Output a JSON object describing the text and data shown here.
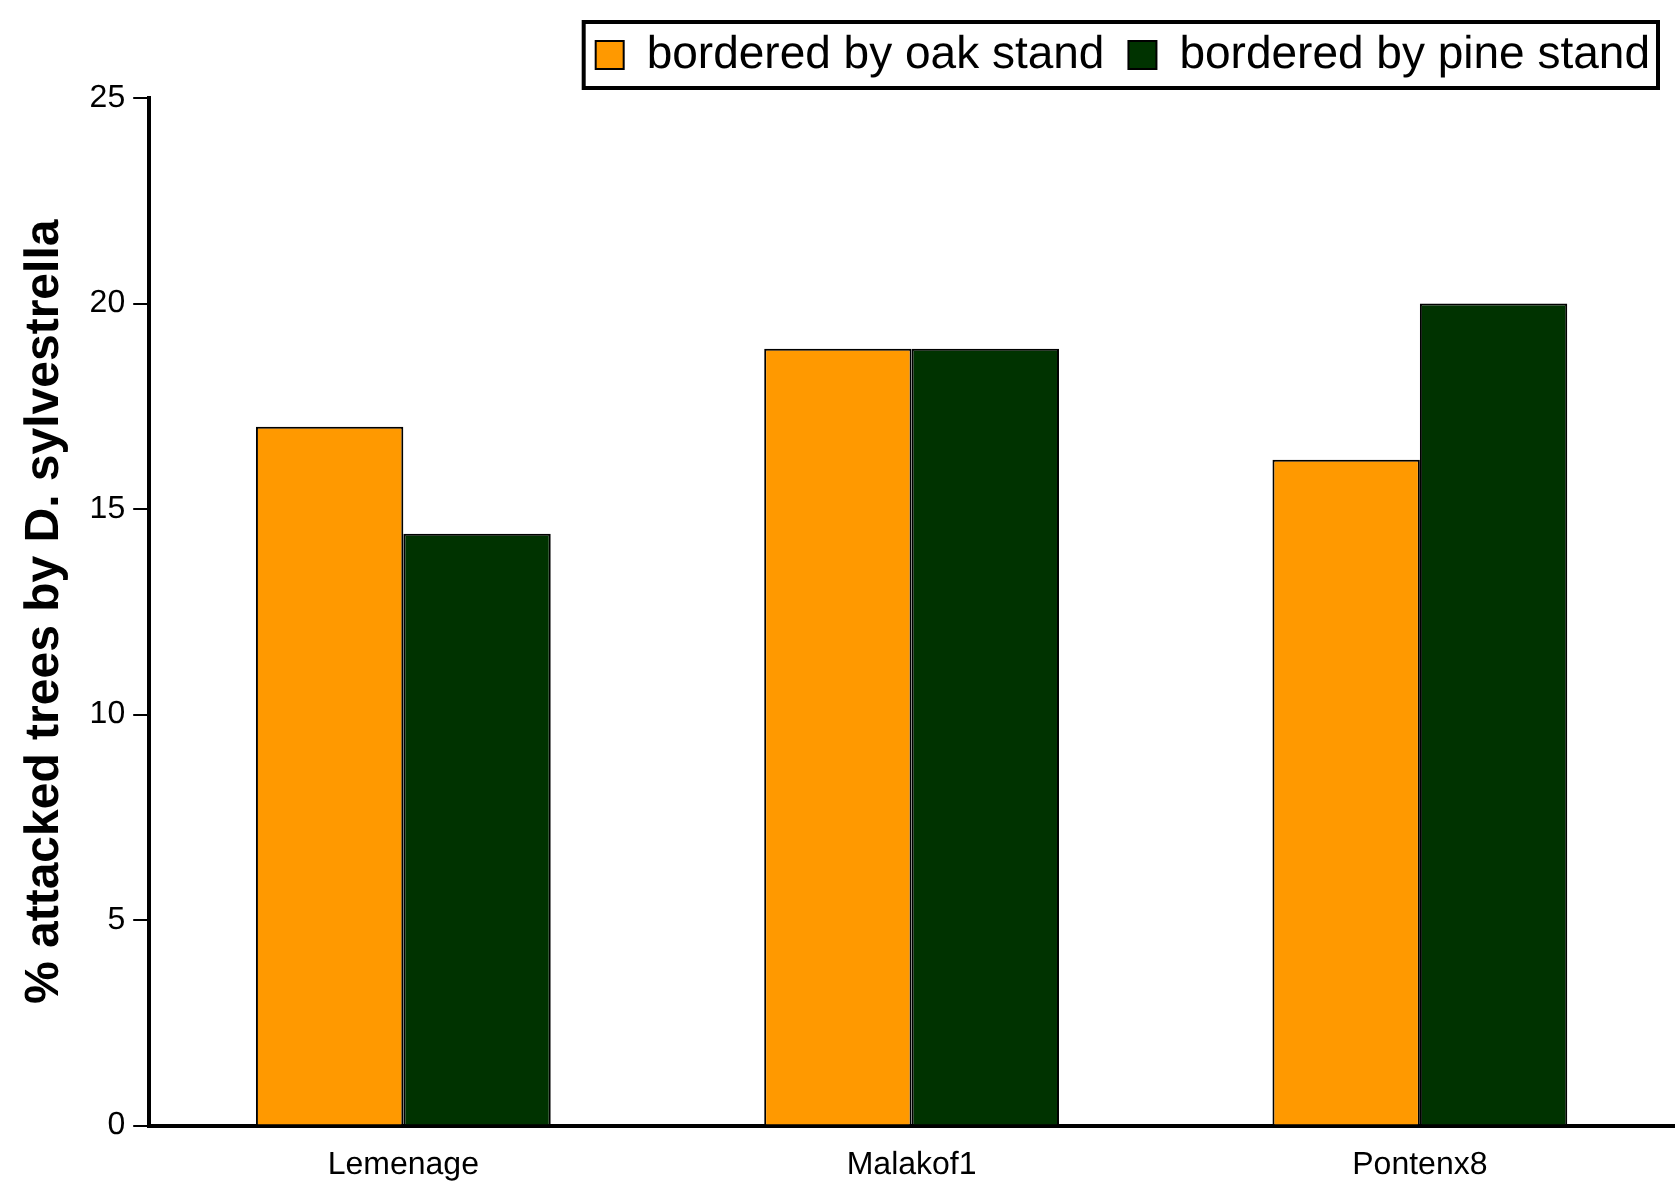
{
  "chart_data": {
    "type": "bar",
    "ylabel": "% attacked trees by D. sylvestrella",
    "categories": [
      "Lemenage",
      "Malakof1",
      "Pontenx8"
    ],
    "series": [
      {
        "name": "bordered by oak stand",
        "color": "#ff9900",
        "values": [
          17.0,
          18.9,
          16.2
        ]
      },
      {
        "name": "bordered by pine stand",
        "color": "#003300",
        "values": [
          14.4,
          18.9,
          20.0
        ]
      }
    ],
    "ylim": [
      0,
      25
    ],
    "yticks": [
      0,
      5,
      10,
      15,
      20,
      25
    ],
    "grid": false,
    "legend": "top right"
  }
}
